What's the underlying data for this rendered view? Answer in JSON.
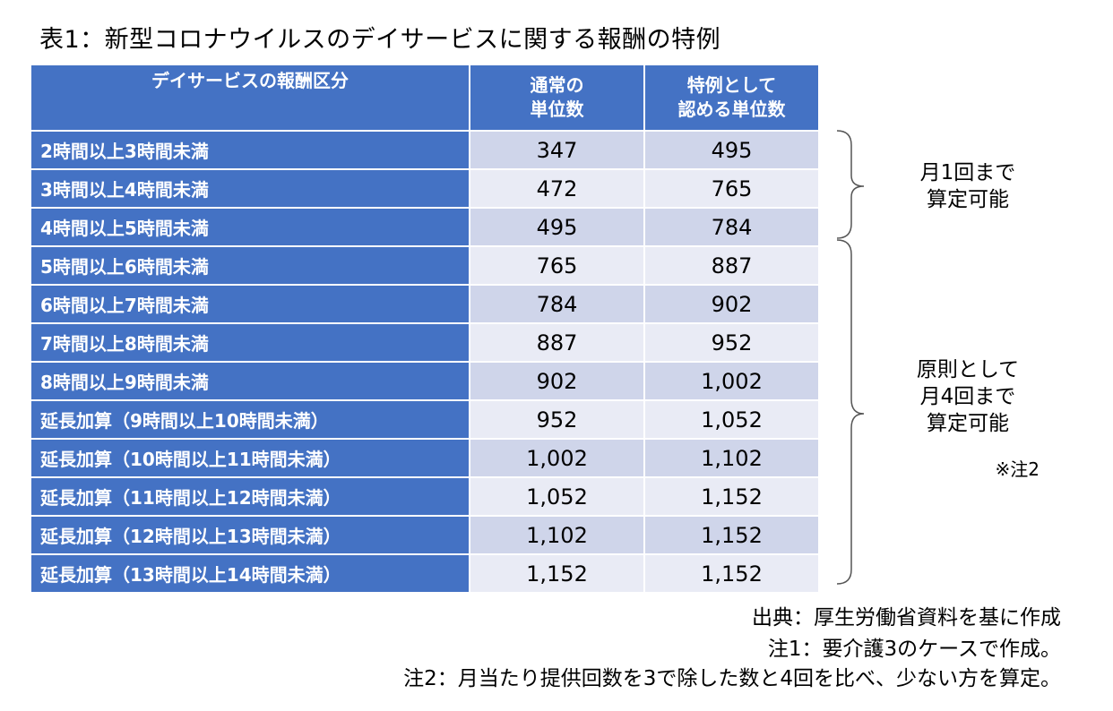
{
  "title": "表1：新型コロナウイルスのデイサービスに関する報酬の特例",
  "table": {
    "headers": {
      "category": "デイサービスの報酬区分",
      "normal_line1": "通常の",
      "normal_line2": "単位数",
      "special_line1": "特例として",
      "special_line2": "認める単位数"
    },
    "rows": [
      {
        "category": "2時間以上3時間未満",
        "normal": "347",
        "special": "495"
      },
      {
        "category": "3時間以上4時間未満",
        "normal": "472",
        "special": "765"
      },
      {
        "category": "4時間以上5時間未満",
        "normal": "495",
        "special": "784"
      },
      {
        "category": "5時間以上6時間未満",
        "normal": "765",
        "special": "887"
      },
      {
        "category": "6時間以上7時間未満",
        "normal": "784",
        "special": "902"
      },
      {
        "category": "7時間以上8時間未満",
        "normal": "887",
        "special": "952"
      },
      {
        "category": "8時間以上9時間未満",
        "normal": "902",
        "special": "1,002"
      },
      {
        "category": "延長加算（9時間以上10時間未満）",
        "normal": "952",
        "special": "1,052"
      },
      {
        "category": "延長加算（10時間以上11時間未満）",
        "normal": "1,002",
        "special": "1,102"
      },
      {
        "category": "延長加算（11時間以上12時間未満）",
        "normal": "1,052",
        "special": "1,152"
      },
      {
        "category": "延長加算（12時間以上13時間未満）",
        "normal": "1,102",
        "special": "1,152"
      },
      {
        "category": "延長加算（13時間以上14時間未満）",
        "normal": "1,152",
        "special": "1,152"
      }
    ]
  },
  "side_notes": {
    "group1_line1": "月1回まで",
    "group1_line2": "算定可能",
    "group2_line1": "原則として",
    "group2_line2": "月4回まで",
    "group2_line3": "算定可能",
    "group2_ref": "※注2"
  },
  "footnotes": {
    "source": "出典：厚生労働省資料を基に作成",
    "note1": "注1：要介護3のケースで作成。",
    "note2": "注2：月当たり提供回数を3で除した数と4回を比べ、少ない方を算定。"
  },
  "colors": {
    "header_blue": "#4472c4",
    "row_band_dark": "#cfd5ea",
    "row_band_light": "#e9ebf5"
  }
}
